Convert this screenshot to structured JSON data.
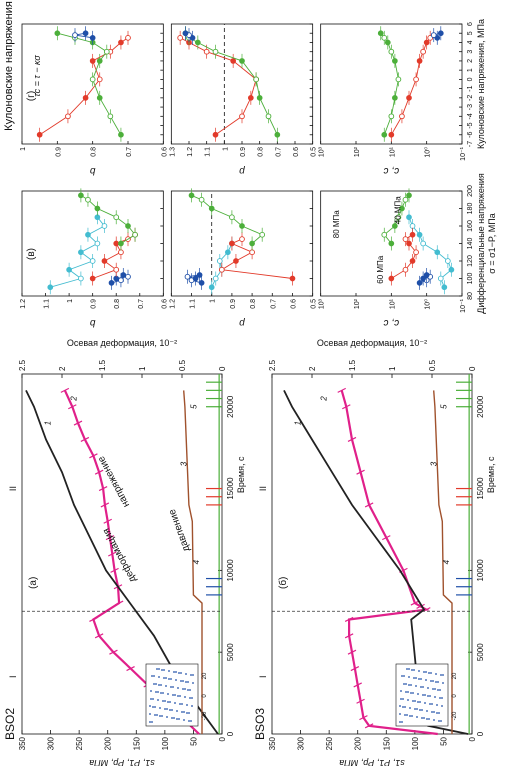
{
  "figure": {
    "section_title": "Кулоновские напряжения",
    "formula": "τc = τ − κσ"
  },
  "colors": {
    "stress": "#e0208a",
    "deformation": "#222222",
    "pressure": "#a0522d",
    "green": "#4caf3a",
    "blue": "#1f4fa8",
    "cyan": "#43bcd0",
    "red": "#e23a2a",
    "orange": "#e8784a"
  },
  "chart_data": [
    {
      "id": "a",
      "panel_label": "(а)",
      "sample": "BSO2",
      "type": "line",
      "phase_labels": [
        "I",
        "II"
      ],
      "xlabel": "Время, с",
      "ylabel": "s1, P1, Pp, МПа",
      "y2label": "Осевая деформация, 10⁻²",
      "xlim": [
        0,
        22000
      ],
      "ylim": [
        0,
        350
      ],
      "y2lim": [
        0,
        2.5
      ],
      "x_ticks": [
        0,
        5000,
        10000,
        15000,
        20000
      ],
      "y_ticks": [
        0,
        50,
        100,
        150,
        200,
        250,
        300,
        350
      ],
      "y2_ticks": [
        0,
        0.5,
        1.0,
        1.5,
        2.0,
        2.5
      ],
      "annotations": [
        "деформация",
        "напряжение",
        "давление",
        "1",
        "2",
        "3",
        "4",
        "5"
      ],
      "series": [
        {
          "name": "напряжение",
          "x": [
            0,
            1000,
            2000,
            3000,
            4000,
            5000,
            6000,
            7000,
            8000,
            9000,
            10000,
            11000,
            12000,
            13000,
            14000,
            15000,
            16000,
            17000,
            18000,
            19000,
            20000,
            21000
          ],
          "y": [
            40,
            70,
            100,
            130,
            160,
            190,
            215,
            225,
            180,
            182,
            188,
            192,
            196,
            200,
            205,
            208,
            215,
            225,
            240,
            252,
            262,
            275
          ]
        },
        {
          "name": "деформация",
          "x": [
            0,
            2000,
            4000,
            6000,
            8000,
            10000,
            12000,
            14000,
            16000,
            18000,
            20000,
            21000
          ],
          "y": [
            0.05,
            0.35,
            0.62,
            0.85,
            1.15,
            1.45,
            1.65,
            1.85,
            2.0,
            2.2,
            2.35,
            2.45
          ]
        },
        {
          "name": "давление",
          "x": [
            0,
            8000,
            8500,
            13000,
            14000,
            20000,
            21000
          ],
          "y": [
            35,
            35,
            50,
            52,
            58,
            65,
            67
          ]
        }
      ],
      "inset": {
        "x_ticks": [
          -20,
          0,
          20
        ],
        "y_ticks": [
          20,
          40,
          60,
          80,
          100,
          120
        ]
      }
    },
    {
      "id": "b",
      "panel_label": "(б)",
      "sample": "BSO3",
      "type": "line",
      "phase_labels": [
        "I",
        "II"
      ],
      "xlabel": "Время, с",
      "ylabel": "s1, P1, Pp, МПа",
      "y2label": "Осевая деформация, 10⁻²",
      "xlim": [
        0,
        22000
      ],
      "ylim": [
        0,
        350
      ],
      "y2lim": [
        0,
        2.5
      ],
      "x_ticks": [
        0,
        5000,
        10000,
        15000,
        20000
      ],
      "y_ticks": [
        0,
        50,
        100,
        150,
        200,
        250,
        300,
        350
      ],
      "y2_ticks": [
        0,
        0.5,
        1.0,
        1.5,
        2.0,
        2.5
      ],
      "annotations": [
        "1",
        "2",
        "3",
        "4",
        "5"
      ],
      "series": [
        {
          "name": "напряжение",
          "x": [
            0,
            500,
            1000,
            2000,
            3000,
            4000,
            5000,
            6000,
            7000,
            7600,
            7800,
            8000,
            10000,
            12000,
            14000,
            16000,
            18000,
            20000,
            21000
          ],
          "y": [
            60,
            180,
            190,
            195,
            200,
            205,
            210,
            215,
            215,
            80,
            90,
            100,
            120,
            150,
            180,
            195,
            210,
            220,
            228
          ]
        },
        {
          "name": "деформация",
          "x": [
            0,
            500,
            1000,
            3000,
            5000,
            7000,
            7600,
            8000,
            10000,
            12000,
            14000,
            16000,
            18000,
            20000,
            21000
          ],
          "y": [
            0.05,
            0.55,
            0.62,
            0.68,
            0.72,
            0.76,
            0.6,
            0.65,
            0.9,
            1.2,
            1.5,
            1.75,
            2.0,
            2.25,
            2.35
          ]
        },
        {
          "name": "давление",
          "x": [
            0,
            8000,
            8500,
            13000,
            14000,
            20000,
            21000
          ],
          "y": [
            35,
            35,
            50,
            52,
            58,
            65,
            67
          ]
        }
      ],
      "inset": {
        "x_ticks": [
          -20,
          0,
          20
        ],
        "y_ticks": [
          20,
          40,
          60,
          80,
          100,
          120
        ]
      }
    },
    {
      "id": "v",
      "panel_label": "(в)",
      "type": "scatter",
      "xlabel": "Дифференциальные напряжения σ = σ1−P, МПа",
      "x_ticks": [
        80,
        100,
        120,
        140,
        160,
        180,
        200
      ],
      "xlim": [
        80,
        200
      ],
      "annotations": [
        "60 МПа",
        "80 МПа",
        "40 МПа"
      ],
      "subplots": [
        {
          "ylabel": "b",
          "ylim": [
            0.6,
            1.2
          ],
          "y_ticks": [
            0.6,
            0.7,
            0.8,
            0.9,
            1.0,
            1.1,
            1.2
          ],
          "series": [
            {
              "color": "blue",
              "x": [
                95,
                98,
                100,
                102,
                104
              ],
              "y": [
                0.82,
                0.78,
                0.8,
                0.75,
                0.77
              ]
            },
            {
              "color": "cyan",
              "x": [
                90,
                100,
                110,
                120,
                130,
                140,
                150,
                160,
                170
              ],
              "y": [
                1.08,
                0.95,
                1.0,
                0.9,
                0.95,
                0.88,
                0.92,
                0.85,
                0.88
              ]
            },
            {
              "color": "red",
              "x": [
                100,
                110,
                120,
                130,
                140,
                145,
                150
              ],
              "y": [
                0.9,
                0.8,
                0.85,
                0.78,
                0.8,
                0.75,
                0.72
              ]
            },
            {
              "color": "green",
              "x": [
                140,
                150,
                160,
                170,
                180,
                190,
                195
              ],
              "y": [
                0.78,
                0.72,
                0.75,
                0.8,
                0.88,
                0.92,
                0.95
              ]
            }
          ]
        },
        {
          "ylabel": "p",
          "ylim": [
            0.5,
            1.2
          ],
          "y_ticks": [
            0.5,
            0.6,
            0.7,
            0.8,
            0.9,
            1.0,
            1.1,
            1.2
          ],
          "ref_line": 1.0,
          "series": [
            {
              "color": "blue",
              "x": [
                95,
                98,
                100,
                102,
                104
              ],
              "y": [
                1.05,
                1.1,
                1.08,
                1.12,
                1.06
              ]
            },
            {
              "color": "cyan",
              "x": [
                90,
                100,
                110,
                120,
                130,
                140
              ],
              "y": [
                1.0,
                0.98,
                0.95,
                0.96,
                0.92,
                0.9
              ]
            },
            {
              "color": "red",
              "x": [
                100,
                110,
                120,
                130,
                140,
                145
              ],
              "y": [
                0.6,
                0.95,
                0.88,
                0.8,
                0.9,
                0.85
              ]
            },
            {
              "color": "green",
              "x": [
                140,
                150,
                160,
                170,
                180,
                190,
                195
              ],
              "y": [
                0.8,
                0.75,
                0.85,
                0.9,
                1.0,
                1.05,
                1.1
              ]
            }
          ]
        },
        {
          "ylabel": "c, с",
          "scale": "log",
          "ylim_exp": [
            -1,
            3
          ],
          "y_ticks": [
            "10⁻¹",
            "10⁰",
            "10¹",
            "10²",
            "10³"
          ],
          "series": [
            {
              "color": "blue",
              "x": [
                95,
                98,
                100,
                102,
                104
              ],
              "y_log": [
                0.2,
                0.0,
                0.1,
                -0.1,
                0.0
              ]
            },
            {
              "color": "cyan",
              "x": [
                90,
                100,
                110,
                120,
                130,
                140,
                150,
                160,
                170
              ],
              "y_log": [
                -0.5,
                -0.4,
                -0.7,
                -0.6,
                -0.3,
                0.1,
                0.2,
                0.4,
                0.5
              ]
            },
            {
              "color": "red",
              "x": [
                100,
                110,
                120,
                130,
                140,
                145,
                150
              ],
              "y_log": [
                1.0,
                0.6,
                0.4,
                0.3,
                0.5,
                0.6,
                0.4
              ]
            },
            {
              "color": "green",
              "x": [
                140,
                150,
                160,
                170,
                180,
                190,
                195
              ],
              "y_log": [
                1.0,
                1.2,
                0.9,
                0.8,
                0.7,
                0.6,
                0.5
              ]
            }
          ]
        }
      ]
    },
    {
      "id": "g",
      "panel_label": "(г)",
      "type": "scatter",
      "xlabel": "Кулоновские напряжения, МПа",
      "x_ticks": [
        -7,
        -6,
        -5,
        -4,
        -3,
        -2,
        -1,
        0,
        1,
        2,
        3,
        4,
        5,
        6
      ],
      "xlim": [
        -7,
        6
      ],
      "subplots": [
        {
          "ylabel": "b",
          "ylim": [
            0.6,
            1.0
          ],
          "y_ticks": [
            0.6,
            0.7,
            0.8,
            0.9,
            1.0
          ],
          "series": [
            {
              "color": "red",
              "x": [
                -6,
                -4,
                -2,
                0,
                2,
                3,
                4,
                4.5
              ],
              "y": [
                0.95,
                0.87,
                0.82,
                0.78,
                0.8,
                0.75,
                0.72,
                0.7
              ]
            },
            {
              "color": "green",
              "x": [
                -6,
                -4,
                -2,
                0,
                2,
                3,
                4,
                4.5,
                5
              ],
              "y": [
                0.72,
                0.75,
                0.78,
                0.8,
                0.78,
                0.76,
                0.8,
                0.85,
                0.9
              ]
            },
            {
              "color": "blue",
              "x": [
                4.5,
                4.8,
                5
              ],
              "y": [
                0.8,
                0.85,
                0.82
              ]
            }
          ]
        },
        {
          "ylabel": "p",
          "ylim": [
            0.5,
            1.3
          ],
          "y_ticks": [
            0.5,
            0.6,
            0.7,
            0.8,
            0.9,
            1.0,
            1.1,
            1.2,
            1.3
          ],
          "ref_line": 1.0,
          "series": [
            {
              "color": "red",
              "x": [
                -6,
                -4,
                -2,
                0,
                2,
                3,
                4,
                4.5
              ],
              "y": [
                1.05,
                0.9,
                0.85,
                0.82,
                0.95,
                1.1,
                1.2,
                1.25
              ]
            },
            {
              "color": "green",
              "x": [
                -6,
                -4,
                -2,
                0,
                2,
                3,
                4,
                4.5,
                5
              ],
              "y": [
                0.7,
                0.75,
                0.8,
                0.82,
                0.9,
                1.05,
                1.15,
                1.2,
                1.22
              ]
            },
            {
              "color": "blue",
              "x": [
                4.5,
                4.8,
                5
              ],
              "y": [
                1.18,
                1.2,
                1.22
              ]
            }
          ]
        },
        {
          "ylabel": "c, с",
          "scale": "log",
          "ylim_exp": [
            -1,
            3
          ],
          "y_ticks": [
            "10⁻¹",
            "10⁰",
            "10¹",
            "10²",
            "10³"
          ],
          "series": [
            {
              "color": "red",
              "x": [
                -6,
                -4,
                -2,
                0,
                2,
                3,
                4,
                4.5
              ],
              "y_log": [
                1.0,
                0.7,
                0.5,
                0.3,
                0.2,
                0.1,
                0.0,
                -0.1
              ]
            },
            {
              "color": "green",
              "x": [
                -6,
                -4,
                -2,
                0,
                2,
                3,
                4,
                4.5,
                5
              ],
              "y_log": [
                1.2,
                1.0,
                0.9,
                0.8,
                0.9,
                1.0,
                1.1,
                1.2,
                1.3
              ]
            },
            {
              "color": "blue",
              "x": [
                4.5,
                4.8,
                5
              ],
              "y_log": [
                -0.3,
                -0.2,
                -0.4
              ]
            }
          ]
        }
      ]
    }
  ]
}
